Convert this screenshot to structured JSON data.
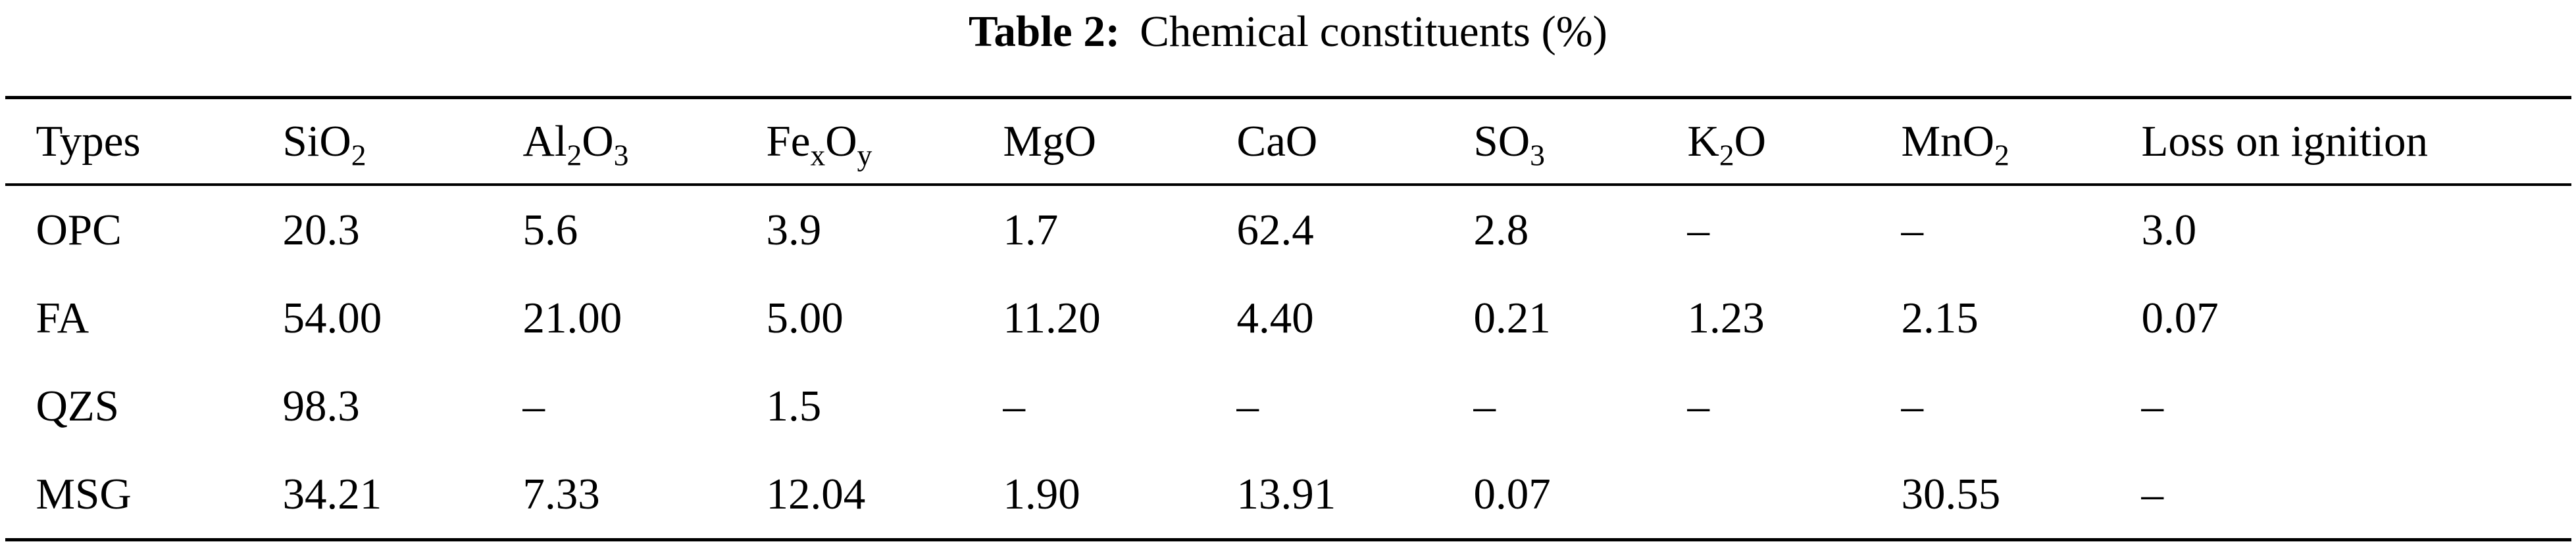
{
  "title": {
    "label": "Table 2:",
    "caption": "Chemical constituents (%)"
  },
  "table": {
    "columns": [
      {
        "name": "types",
        "parts": [
          {
            "t": "Types"
          }
        ]
      },
      {
        "name": "sio2",
        "parts": [
          {
            "t": "SiO"
          },
          {
            "t": "2",
            "sub": true
          }
        ]
      },
      {
        "name": "al2o3",
        "parts": [
          {
            "t": "Al"
          },
          {
            "t": "2",
            "sub": true
          },
          {
            "t": "O"
          },
          {
            "t": "3",
            "sub": true
          }
        ]
      },
      {
        "name": "fexoy",
        "parts": [
          {
            "t": "Fe"
          },
          {
            "t": "x",
            "sub": true
          },
          {
            "t": "O"
          },
          {
            "t": "y",
            "sub": true
          }
        ]
      },
      {
        "name": "mgo",
        "parts": [
          {
            "t": "MgO"
          }
        ]
      },
      {
        "name": "cao",
        "parts": [
          {
            "t": "CaO"
          }
        ]
      },
      {
        "name": "so3",
        "parts": [
          {
            "t": "SO"
          },
          {
            "t": "3",
            "sub": true
          }
        ]
      },
      {
        "name": "k2o",
        "parts": [
          {
            "t": "K"
          },
          {
            "t": "2",
            "sub": true
          },
          {
            "t": "O"
          }
        ]
      },
      {
        "name": "mno2",
        "parts": [
          {
            "t": "MnO"
          },
          {
            "t": "2",
            "sub": true
          }
        ]
      },
      {
        "name": "loss-on-ignition",
        "parts": [
          {
            "t": "Loss on ignition"
          }
        ]
      }
    ],
    "rows": [
      [
        "OPC",
        "20.3",
        "5.6",
        "3.9",
        "1.7",
        "62.4",
        "2.8",
        "–",
        "–",
        "3.0"
      ],
      [
        "FA",
        "54.00",
        "21.00",
        "5.00",
        "11.20",
        "4.40",
        "0.21",
        "1.23",
        "2.15",
        "0.07"
      ],
      [
        "QZS",
        "98.3",
        "–",
        "1.5",
        "–",
        "–",
        "–",
        "–",
        "–",
        "–"
      ],
      [
        "MSG",
        "34.21",
        "7.33",
        "12.04",
        "1.90",
        "13.91",
        "0.07",
        "",
        "30.55",
        "–"
      ]
    ]
  }
}
